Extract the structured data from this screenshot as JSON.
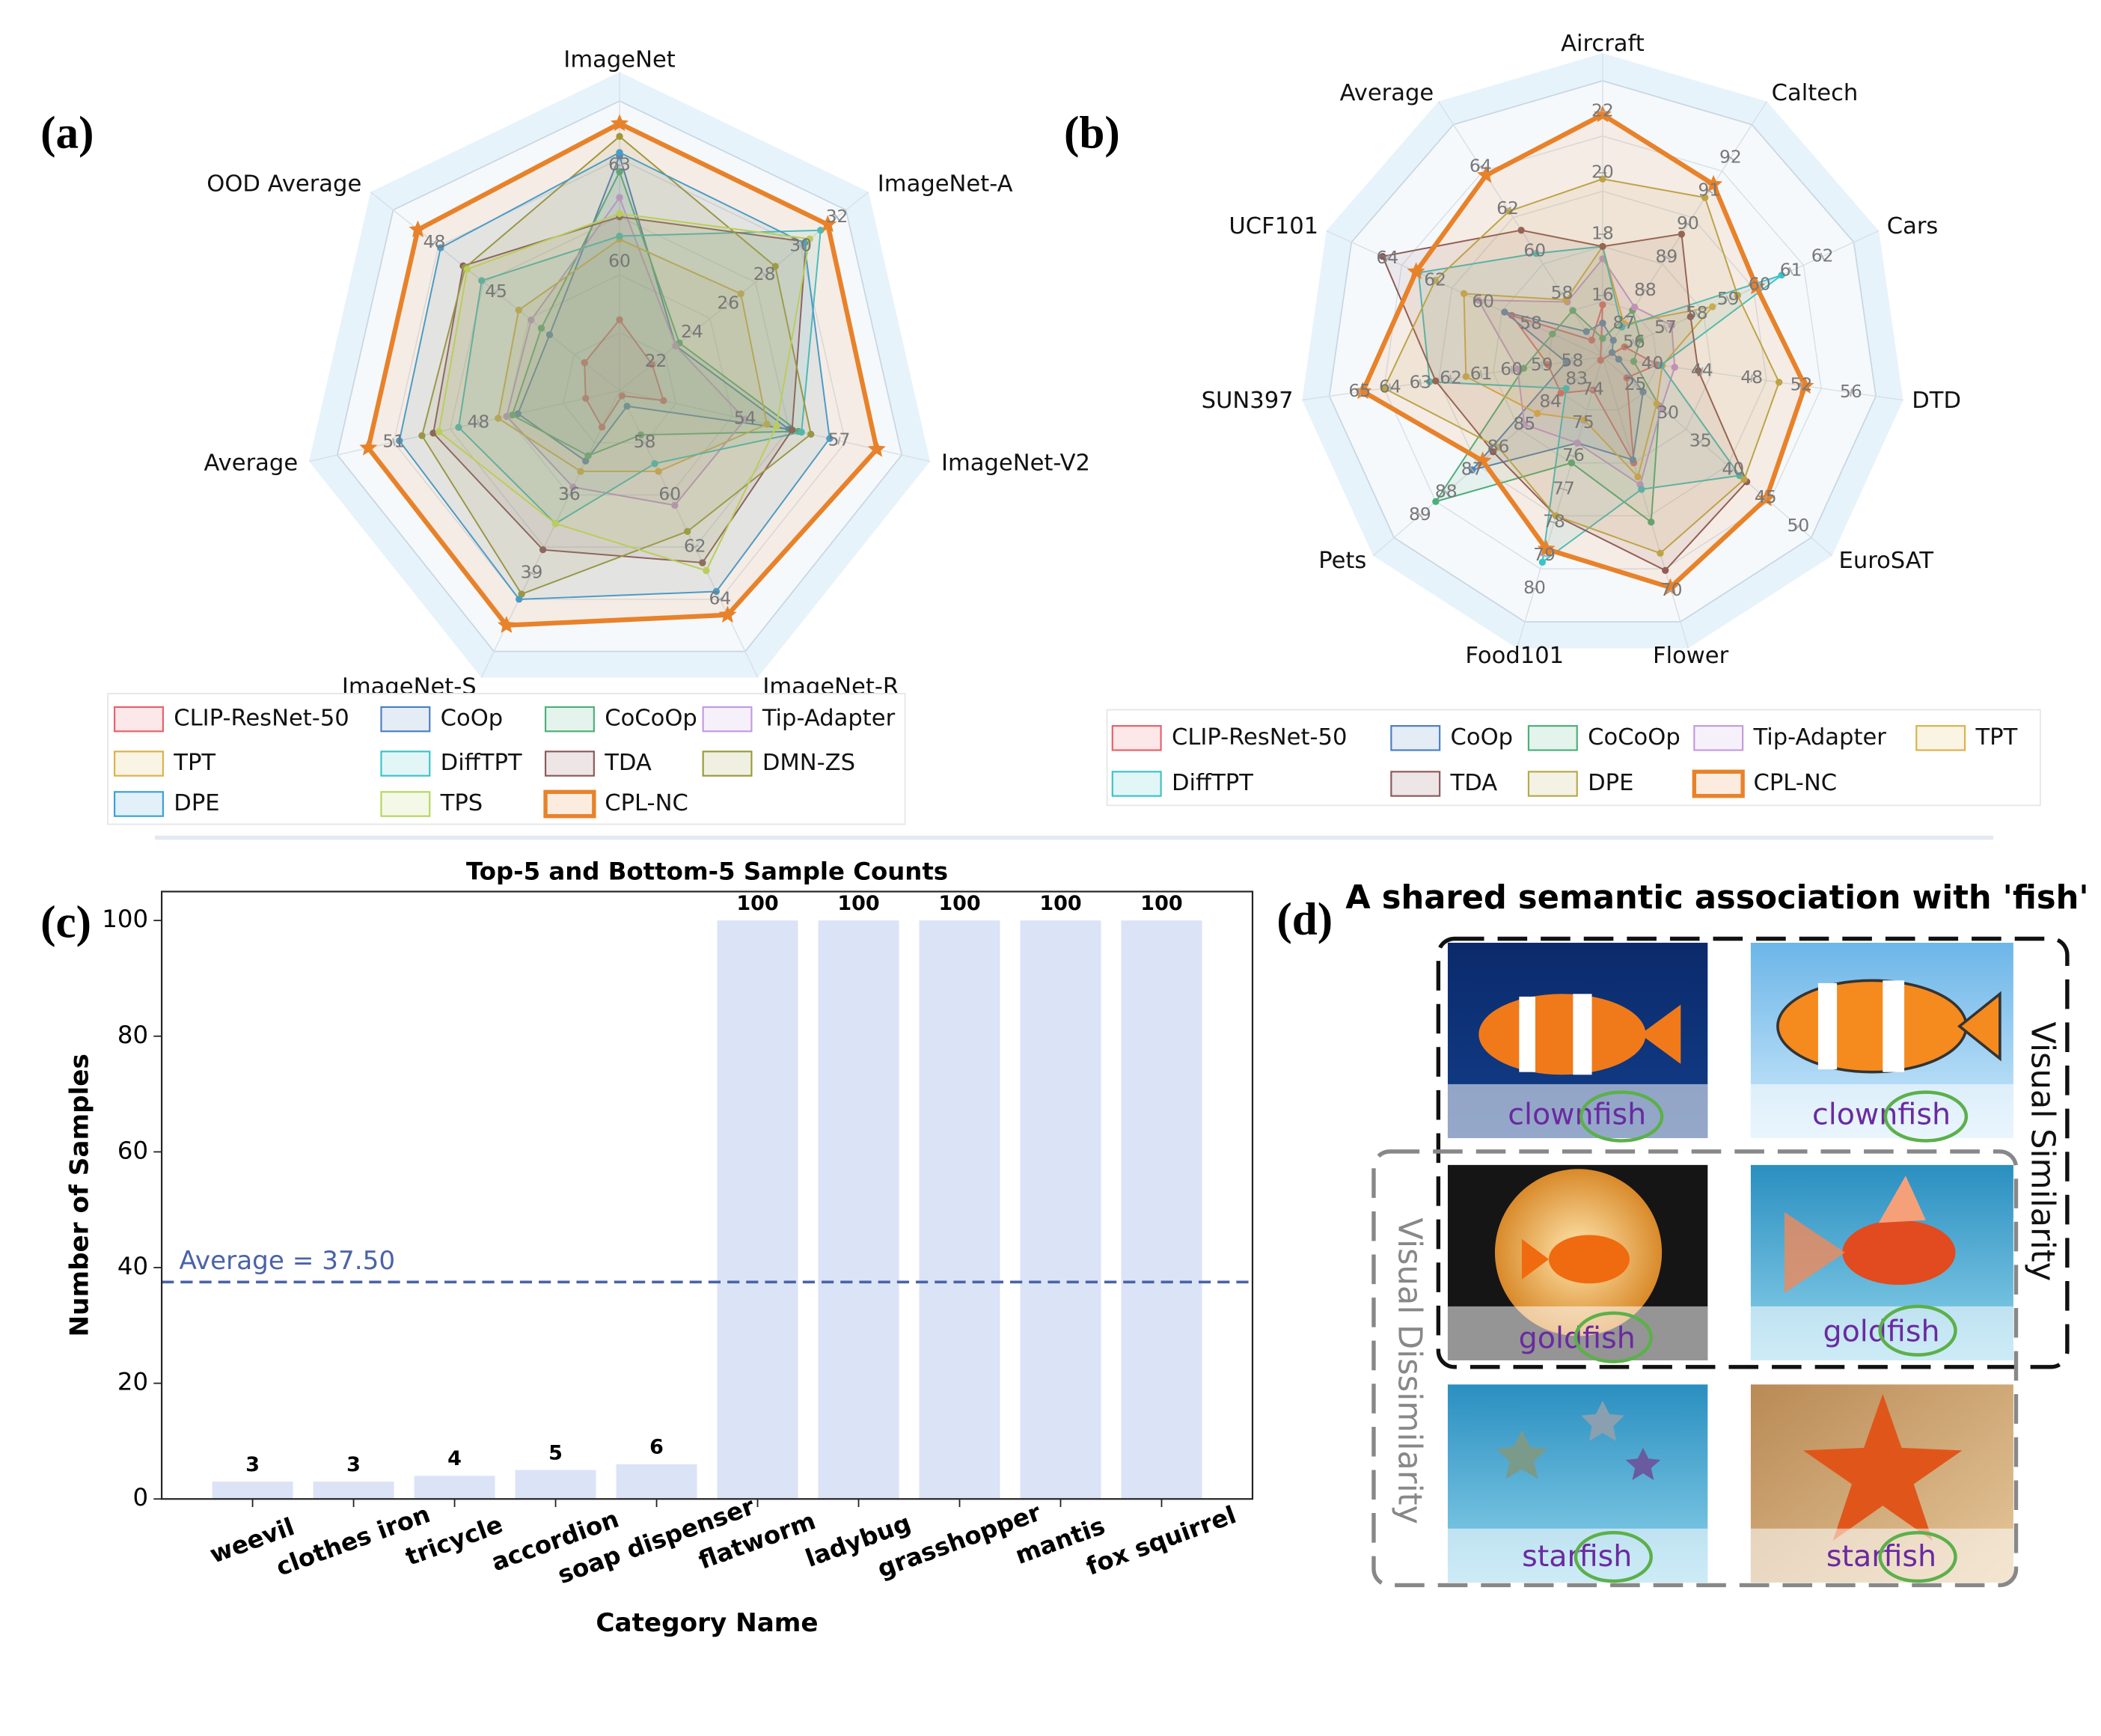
{
  "chart_data": [
    {
      "type": "radar",
      "panel": "(a)",
      "axes": [
        {
          "name": "ImageNet",
          "range": [
            56,
            65
          ],
          "ticks": [
            60,
            63
          ]
        },
        {
          "name": "ImageNet-A",
          "range": [
            20,
            32.5
          ],
          "ticks": [
            22,
            24,
            26,
            28,
            30,
            32
          ]
        },
        {
          "name": "ImageNet-V2",
          "range": [
            50,
            59
          ],
          "ticks": [
            54,
            57
          ]
        },
        {
          "name": "ImageNet-R",
          "range": [
            56,
            66
          ],
          "ticks": [
            58,
            60,
            62,
            64
          ]
        },
        {
          "name": "ImageNet-S",
          "range": [
            32,
            42
          ],
          "ticks": [
            36,
            39
          ]
        },
        {
          "name": "Average",
          "range": [
            43,
            53
          ],
          "ticks": [
            48,
            51
          ]
        },
        {
          "name": "OOD Average",
          "range": [
            39,
            50
          ],
          "ticks": [
            45,
            48
          ]
        }
      ],
      "series": [
        {
          "name": "CLIP-ResNet-50",
          "color": "#e8606a",
          "values": [
            58.2,
            21.8,
            51.4,
            56.2,
            33.4,
            44.2,
            40.7
          ]
        },
        {
          "name": "CoOp",
          "color": "#4a7fc1",
          "values": [
            63.3,
            23.1,
            55.4,
            56.6,
            34.7,
            46.6,
            42.4
          ]
        },
        {
          "name": "CoCoOp",
          "color": "#4caf7a",
          "values": [
            62.8,
            23.3,
            55.7,
            57.7,
            34.5,
            46.8,
            42.8
          ]
        },
        {
          "name": "Tip-Adapter",
          "color": "#c39be0",
          "values": [
            62.0,
            23.1,
            54.0,
            60.4,
            35.7,
            47.0,
            43.3
          ]
        },
        {
          "name": "TPT",
          "color": "#d9b24a",
          "values": [
            60.7,
            26.7,
            54.7,
            59.1,
            35.1,
            47.3,
            43.9
          ]
        },
        {
          "name": "DiffTPT",
          "color": "#3cc3c8",
          "values": [
            60.8,
            31.1,
            55.8,
            58.8,
            37.1,
            48.7,
            45.7
          ]
        },
        {
          "name": "TDA",
          "color": "#8b5a5a",
          "values": [
            61.4,
            30.3,
            55.5,
            62.6,
            38.1,
            49.6,
            46.6
          ]
        },
        {
          "name": "DMN-ZS",
          "color": "#9a9a3a",
          "values": [
            63.9,
            28.6,
            56.1,
            61.4,
            39.8,
            50.0,
            46.5
          ]
        },
        {
          "name": "DPE",
          "color": "#3a9fd6",
          "values": [
            63.4,
            30.2,
            56.7,
            63.7,
            40.0,
            50.8,
            47.7
          ]
        },
        {
          "name": "TPS",
          "color": "#b5d660",
          "values": [
            61.5,
            30.5,
            55.0,
            62.9,
            37.1,
            49.4,
            46.4
          ]
        },
        {
          "name": "CPL-NC",
          "color": "#e8822a",
          "marker": "star",
          "values": [
            64.3,
            31.5,
            58.2,
            64.6,
            41.0,
            51.9,
            48.8
          ]
        }
      ]
    },
    {
      "type": "radar",
      "panel": "(b)",
      "axes": [
        {
          "name": "Aircraft",
          "range": [
            14,
            23
          ],
          "ticks": [
            16,
            18,
            20,
            22
          ]
        },
        {
          "name": "Caltech",
          "range": [
            86,
            93
          ],
          "ticks": [
            87,
            88,
            89,
            90,
            91,
            92
          ]
        },
        {
          "name": "Cars",
          "range": [
            55,
            63
          ],
          "ticks": [
            56,
            57,
            58,
            59,
            60,
            61,
            62
          ]
        },
        {
          "name": "DTD",
          "range": [
            36,
            58
          ],
          "ticks": [
            40,
            44,
            48,
            52,
            56
          ]
        },
        {
          "name": "EuroSAT",
          "range": [
            20,
            52
          ],
          "ticks": [
            25,
            30,
            35,
            40,
            45,
            50
          ]
        },
        {
          "name": "Flower",
          "range": [
            55,
            72
          ],
          "ticks": [
            70
          ]
        },
        {
          "name": "Food101",
          "range": [
            73,
            81
          ],
          "ticks": [
            74,
            75,
            76,
            77,
            78,
            79,
            80
          ]
        },
        {
          "name": "Pets",
          "range": [
            82,
            90
          ],
          "ticks": [
            83,
            84,
            85,
            86,
            87,
            88,
            89
          ]
        },
        {
          "name": "SUN397",
          "range": [
            57,
            66
          ],
          "ticks": [
            58,
            59,
            60,
            61,
            62,
            63,
            64,
            65
          ]
        },
        {
          "name": "UCF101",
          "range": [
            55,
            65.5
          ],
          "ticks": [
            58,
            60,
            62,
            64
          ]
        },
        {
          "name": "Average",
          "range": [
            55,
            66
          ],
          "ticks": [
            58,
            60,
            62,
            64
          ]
        }
      ],
      "series": [
        {
          "name": "CLIP-ResNet-50",
          "color": "#e8606a",
          "values": [
            15.7,
            85.9,
            55.7,
            40.4,
            23.7,
            61.8,
            74.0,
            83.6,
            58.8,
            58.8,
            55.8
          ]
        },
        {
          "name": "CoOp",
          "color": "#4a7fc1",
          "values": [
            15.1,
            86.5,
            55.3,
            37.3,
            26.2,
            61.6,
            75.6,
            87.0,
            58.2,
            59.1,
            56.2
          ]
        },
        {
          "name": "CoCoOp",
          "color": "#4caf7a",
          "values": [
            14.6,
            87.4,
            56.2,
            38.5,
            28.7,
            65.6,
            76.2,
            88.4,
            59.6,
            57.1,
            57.2
          ]
        },
        {
          "name": "Tip-Adapter",
          "color": "#c39be0",
          "values": [
            17.2,
            87.5,
            57.2,
            41.8,
            29.0,
            63.2,
            75.6,
            85.0,
            59.8,
            60.2,
            57.6
          ]
        },
        {
          "name": "TPT",
          "color": "#d9b24a",
          "values": [
            17.6,
            87.0,
            58.5,
            40.8,
            28.3,
            62.7,
            74.9,
            84.5,
            61.5,
            60.8,
            57.7
          ]
        },
        {
          "name": "DiffTPT",
          "color": "#3cc3c8",
          "values": [
            17.6,
            86.9,
            60.7,
            40.7,
            41.0,
            63.5,
            79.2,
            83.4,
            62.7,
            62.7,
            59.9
          ]
        },
        {
          "name": "TDA",
          "color": "#8b5a5a",
          "values": [
            17.6,
            89.7,
            57.8,
            43.7,
            42.1,
            68.7,
            77.8,
            86.2,
            62.5,
            64.2,
            61.0
          ]
        },
        {
          "name": "DPE",
          "color": "#b8a84a",
          "values": [
            19.8,
            90.8,
            59.3,
            50.2,
            41.7,
            67.6,
            77.8,
            86.0,
            64.2,
            62.0,
            61.9
          ]
        },
        {
          "name": "CPL-NC",
          "color": "#e8822a",
          "marker": "star",
          "values": [
            21.9,
            91.2,
            59.9,
            52.3,
            45.1,
            69.8,
            78.8,
            86.6,
            64.9,
            62.8,
            63.6
          ]
        }
      ]
    },
    {
      "type": "bar",
      "panel": "(c)",
      "title": "Top-5 and Bottom-5 Sample Counts",
      "x_label": "Category Name",
      "y_label": "Number of Samples",
      "categories": [
        "weevil",
        "clothes iron",
        "tricycle",
        "accordion",
        "soap dispenser",
        "flatworm",
        "ladybug",
        "grasshopper",
        "mantis",
        "fox squirrel"
      ],
      "values": [
        3,
        3,
        4,
        5,
        6,
        100,
        100,
        100,
        100,
        100
      ],
      "color": "#dbe3f7",
      "ylim": [
        0,
        105
      ],
      "yticks": [
        0,
        20,
        40,
        60,
        80,
        100
      ],
      "reference_line": {
        "value": 37.5,
        "label": "Average = 37.50",
        "color": "#4a63a8"
      }
    }
  ],
  "diagram": {
    "panel": "(d)",
    "title": "A shared semantic association with 'fish'",
    "rows": [
      [
        "clownfish",
        "clownfish"
      ],
      [
        "goldfish",
        "goldfish"
      ],
      [
        "starfish",
        "starfish"
      ]
    ],
    "groups": [
      "Visual Similarity",
      "Visual Dissimilarity"
    ]
  }
}
